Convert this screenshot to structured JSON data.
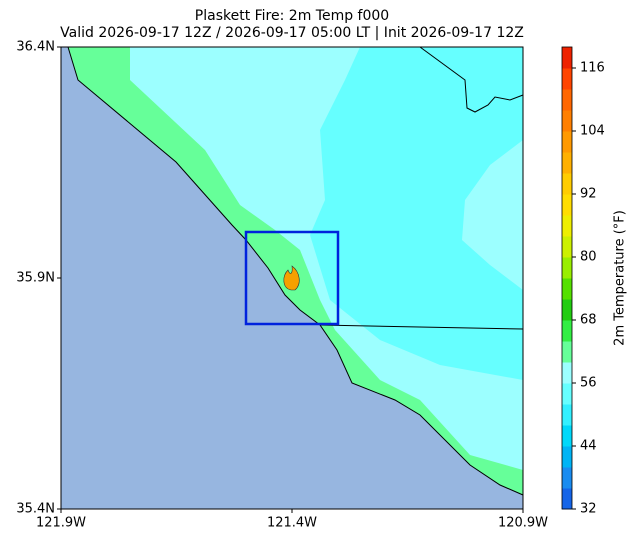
{
  "chart_data": {
    "type": "map",
    "title": "Plaskett Fire: 2m Temp f000",
    "subtitle": "Valid 2026-09-17 12Z / 2026-09-17 05:00 LT | Init 2026-09-17 12Z",
    "xlim": [
      -121.9,
      -120.9
    ],
    "ylim": [
      35.4,
      36.4
    ],
    "xticks": [
      {
        "value": -121.9,
        "label": "121.9W"
      },
      {
        "value": -121.4,
        "label": "121.4W"
      },
      {
        "value": -120.9,
        "label": "120.9W"
      }
    ],
    "yticks": [
      {
        "value": 35.4,
        "label": "35.4N"
      },
      {
        "value": 35.9,
        "label": "35.9N"
      },
      {
        "value": 36.4,
        "label": "36.4N"
      }
    ],
    "colorbar": {
      "label": "2m Temperature (°F)",
      "lim": [
        32,
        120
      ],
      "ticks": [
        32,
        44,
        56,
        68,
        80,
        92,
        104,
        116
      ],
      "colors": [
        "#1565e8",
        "#1a8cf0",
        "#00b4f5",
        "#00d8fa",
        "#33f0ff",
        "#66ffff",
        "#9cffff",
        "#66ff99",
        "#33ee44",
        "#22cc11",
        "#55e000",
        "#99ee00",
        "#ccf000",
        "#eeee00",
        "#ffdd00",
        "#ffcc00",
        "#ffb000",
        "#ff9900",
        "#ff7f00",
        "#ff6600",
        "#ff4400",
        "#ee2200"
      ]
    }
  }
}
